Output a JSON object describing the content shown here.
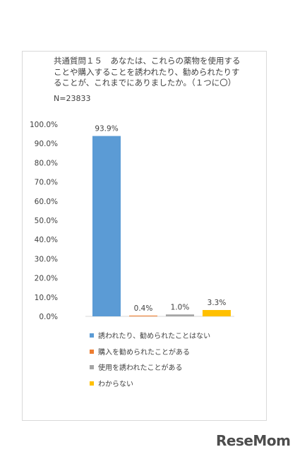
{
  "chart_data": {
    "type": "bar",
    "title_lines": [
      "共通質問１５　あなたは、これらの薬物を使用する",
      "ことや購入することを誘われたり、勧められたりす",
      "ることが、これまでにありましたか。（１つに〇）"
    ],
    "sample_label": "N=23833",
    "categories": [
      "誘われたり、勧められたことはない",
      "購入を勧められたことがある",
      "使用を誘われたことがある",
      "わからない"
    ],
    "values": [
      93.9,
      0.4,
      1.0,
      3.3
    ],
    "value_labels": [
      "93.9%",
      "0.4%",
      "1.0%",
      "3.3%"
    ],
    "colors": [
      "#5b9bd5",
      "#ed7d31",
      "#a5a5a5",
      "#ffc000"
    ],
    "ylim": [
      0,
      100
    ],
    "yticks": [
      0,
      10,
      20,
      30,
      40,
      50,
      60,
      70,
      80,
      90,
      100
    ],
    "ytick_labels": [
      "0.0%",
      "10.0%",
      "20.0%",
      "30.0%",
      "40.0%",
      "50.0%",
      "60.0%",
      "70.0%",
      "80.0%",
      "90.0%",
      "100.0%"
    ],
    "grid": false,
    "legend_position": "bottom"
  },
  "watermark": "ReseMom"
}
